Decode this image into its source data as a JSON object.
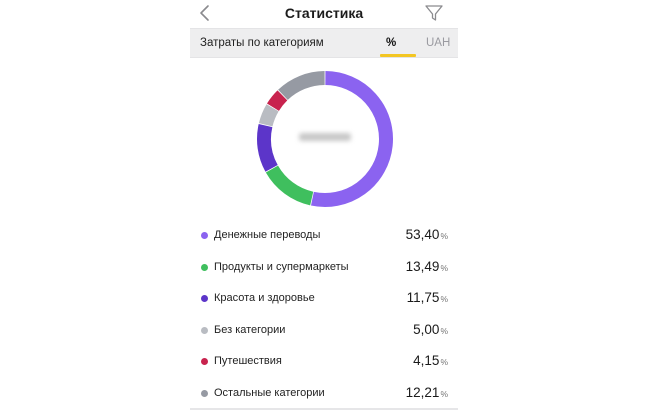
{
  "header": {
    "title": "Статистика",
    "back_icon": "chevron-left-icon",
    "filter_icon": "filter-funnel-icon"
  },
  "segment": {
    "label": "Затраты по категориям",
    "options": [
      "%",
      "UAH"
    ],
    "selected": "%",
    "accent_color": "#f3c623"
  },
  "donut": {
    "center_text_blurred": true
  },
  "categories": [
    {
      "name": "Денежные переводы",
      "value": "53,40",
      "unit": "%",
      "percent": 53.4,
      "color": "#8b63f0"
    },
    {
      "name": "Продукты и супермаркеты",
      "value": "13,49",
      "unit": "%",
      "percent": 13.49,
      "color": "#3fbf5e"
    },
    {
      "name": "Красота и здоровье",
      "value": "11,75",
      "unit": "%",
      "percent": 11.75,
      "color": "#5c35c9"
    },
    {
      "name": "Без категории",
      "value": "5,00",
      "unit": "%",
      "percent": 5.0,
      "color": "#b9bcc2"
    },
    {
      "name": "Путешествия",
      "value": "4,15",
      "unit": "%",
      "percent": 4.15,
      "color": "#c8234e"
    },
    {
      "name": "Остальные категории",
      "value": "12,21",
      "unit": "%",
      "percent": 12.21,
      "color": "#969aa3"
    }
  ]
}
